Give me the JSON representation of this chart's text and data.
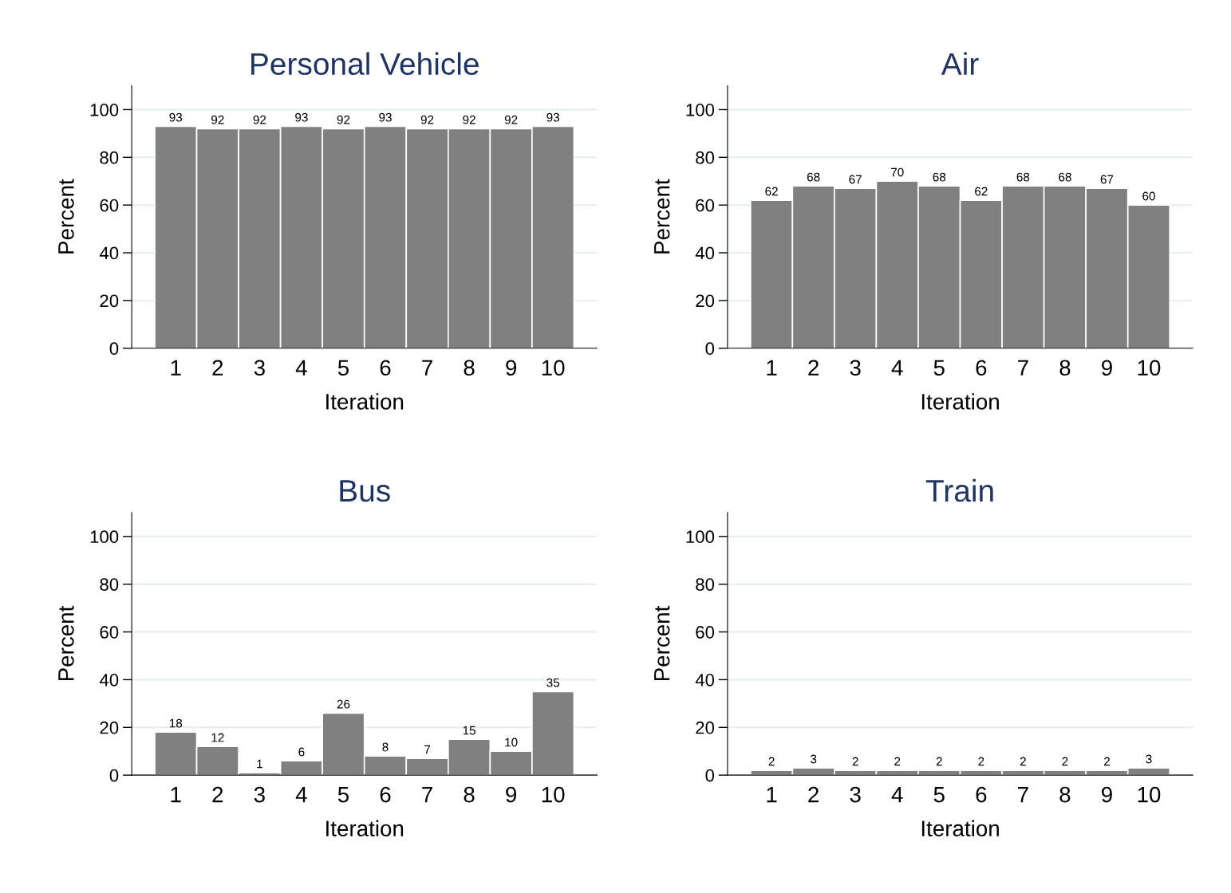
{
  "chart_data": [
    {
      "type": "bar",
      "title": "Personal Vehicle",
      "xlabel": "Iteration",
      "ylabel": "Percent",
      "categories": [
        "1",
        "2",
        "3",
        "4",
        "5",
        "6",
        "7",
        "8",
        "9",
        "10"
      ],
      "values": [
        93,
        92,
        92,
        93,
        92,
        93,
        92,
        92,
        92,
        93
      ],
      "color": "#808080",
      "ylim": [
        0,
        110
      ],
      "yticks": [
        0,
        20,
        40,
        60,
        80,
        100
      ],
      "grid": "y",
      "data_labels": true
    },
    {
      "type": "bar",
      "title": "Air",
      "xlabel": "Iteration",
      "ylabel": "Percent",
      "categories": [
        "1",
        "2",
        "3",
        "4",
        "5",
        "6",
        "7",
        "8",
        "9",
        "10"
      ],
      "values": [
        62,
        68,
        67,
        70,
        68,
        62,
        68,
        68,
        67,
        60
      ],
      "color": "#808080",
      "ylim": [
        0,
        110
      ],
      "yticks": [
        0,
        20,
        40,
        60,
        80,
        100
      ],
      "grid": "y",
      "data_labels": true
    },
    {
      "type": "bar",
      "title": "Bus",
      "xlabel": "Iteration",
      "ylabel": "Percent",
      "categories": [
        "1",
        "2",
        "3",
        "4",
        "5",
        "6",
        "7",
        "8",
        "9",
        "10"
      ],
      "values": [
        18,
        12,
        1,
        6,
        26,
        8,
        7,
        15,
        10,
        35
      ],
      "color": "#808080",
      "ylim": [
        0,
        110
      ],
      "yticks": [
        0,
        20,
        40,
        60,
        80,
        100
      ],
      "grid": "y",
      "data_labels": true
    },
    {
      "type": "bar",
      "title": "Train",
      "xlabel": "Iteration",
      "ylabel": "Percent",
      "categories": [
        "1",
        "2",
        "3",
        "4",
        "5",
        "6",
        "7",
        "8",
        "9",
        "10"
      ],
      "values": [
        2,
        3,
        2,
        2,
        2,
        2,
        2,
        2,
        2,
        3
      ],
      "color": "#808080",
      "ylim": [
        0,
        110
      ],
      "yticks": [
        0,
        20,
        40,
        60,
        80,
        100
      ],
      "grid": "y",
      "data_labels": true
    }
  ]
}
